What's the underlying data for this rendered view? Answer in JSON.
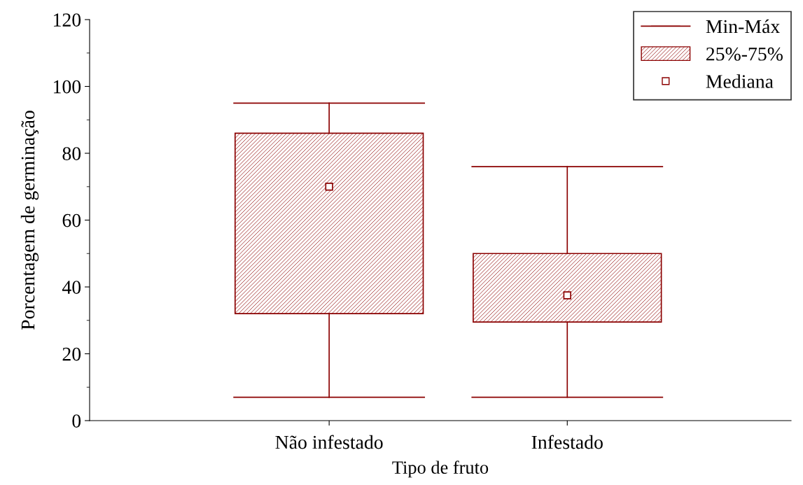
{
  "chart_data": {
    "type": "box",
    "xlabel": "Tipo de fruto",
    "ylabel": "Porcentagem de germinação",
    "categories": [
      "Não infestado",
      "Infestado"
    ],
    "boxes": [
      {
        "low": 7,
        "q1": 32,
        "median": 70,
        "q3": 86,
        "high": 95
      },
      {
        "low": 7,
        "q1": 29.5,
        "median": 37.5,
        "q3": 50,
        "high": 76
      }
    ],
    "color": "#8b0000",
    "ylim": [
      0,
      120
    ],
    "yticks": [
      0,
      20,
      40,
      60,
      80,
      100,
      120
    ],
    "grid": false,
    "marker": "square",
    "annotations": [
      "Min-Máx",
      "25%-75%",
      "Mediana"
    ]
  }
}
